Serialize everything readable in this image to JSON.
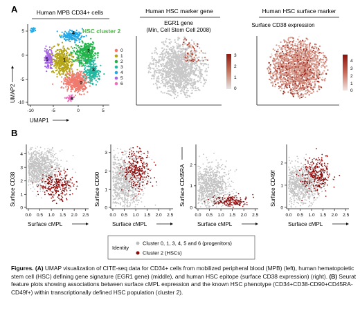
{
  "panel_a": {
    "letter": "A",
    "umap1": {
      "header": "Human MPB CD34+ cells",
      "cluster_label": "HSC cluster 2",
      "xlabel": "UMAP1",
      "ylabel": "UMAP2",
      "xticks": [
        "-10",
        "-5",
        "0",
        "5"
      ],
      "yticks": [
        "5",
        "0",
        "-5",
        "-10"
      ],
      "legend": [
        "0",
        "1",
        "2",
        "3",
        "4",
        "5",
        "6"
      ],
      "colors": [
        "#f07a6e",
        "#b4a516",
        "#24b34b",
        "#24b7a0",
        "#27a8e5",
        "#a665e6",
        "#f06cbd"
      ]
    },
    "umap2": {
      "header": "Human HSC marker gene",
      "subtitle_line1": "EGR1 gene",
      "subtitle_line2": "(Min, Cell Stem Cell 2008)",
      "scale_ticks": [
        "3",
        "2",
        "1",
        "0"
      ]
    },
    "umap3": {
      "header": "Human HSC surface marker",
      "subtitle": "Surface CD38 expression",
      "scale_ticks": [
        "4",
        "3",
        "2",
        "1",
        "0"
      ]
    }
  },
  "panel_b": {
    "letter": "B",
    "xlabel": "Surface cMPL",
    "xticks": [
      "0.0",
      "0.5",
      "1.0",
      "1.5",
      "2.0",
      "2.5"
    ],
    "plots": [
      {
        "ylabel": "Surface CD38",
        "yticks": [
          "4",
          "3",
          "2",
          "1",
          "0"
        ]
      },
      {
        "ylabel": "Surface CD90",
        "yticks": [
          "3",
          "2",
          "1",
          "0"
        ]
      },
      {
        "ylabel": "Surface CD45RA",
        "yticks": [
          "2",
          "1",
          "0"
        ]
      },
      {
        "ylabel": "Surface CD49f",
        "yticks": [
          "2",
          "1",
          "0"
        ]
      }
    ],
    "legend": {
      "title": "Identity",
      "items": [
        {
          "label": "Cluster 0, 1, 3, 4, 5 and 6 (progenitors)",
          "color": "#bdbdbd"
        },
        {
          "label": "Cluster 2 (HSCs)",
          "color": "#8b0b0b"
        }
      ]
    }
  },
  "caption": {
    "bold": "Figures. (A)",
    "text_a": " UMAP visualization of CITE-seq data for CD34+ cells from mobilized peripheral blood (MPB) (left), human hematopoietic stem cell (HSC) defining gene signature (EGR1 gene) (middle), and human HSC epitope (surface CD38 expression) (right). ",
    "bold_b": "(B)",
    "text_b": " Seurat feature plots showing associations between surface cMPL expression and the known HSC phenotype (CD34+CD38-CD90+CD45RA-CD49f+) within transcriptionally defined HSC population (cluster 2)."
  }
}
